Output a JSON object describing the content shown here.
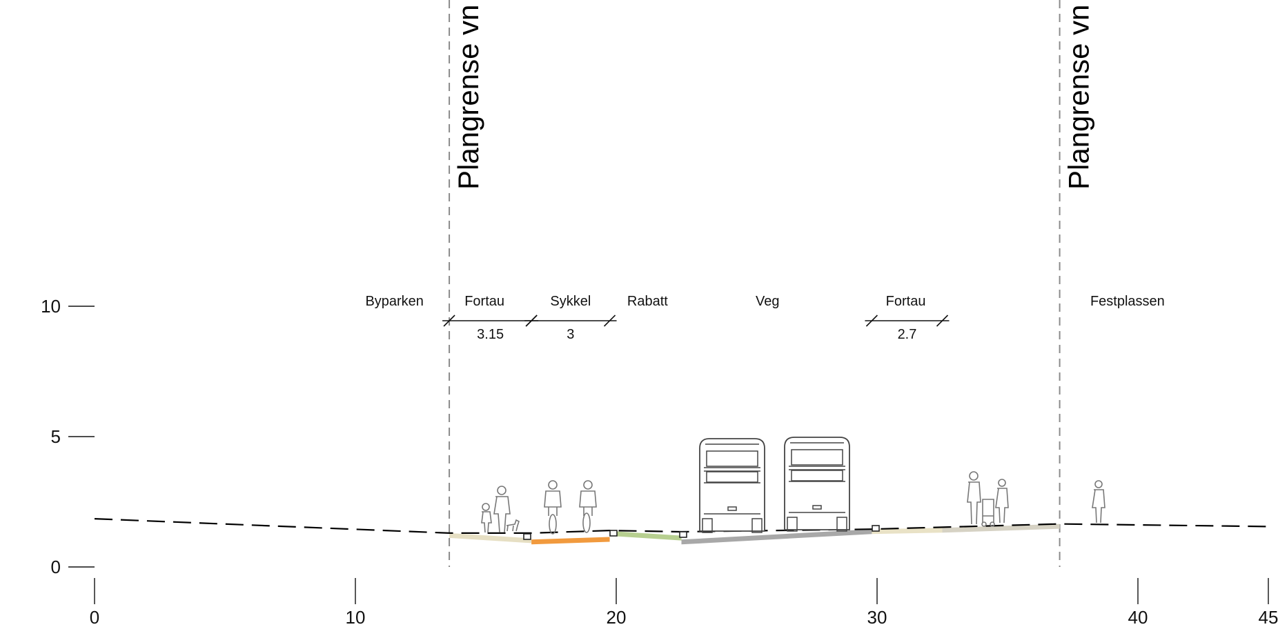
{
  "plan_boundaries": [
    {
      "x": 13.6,
      "label": "Plangrense vn"
    },
    {
      "x": 37.0,
      "label": "Plangrense vn"
    }
  ],
  "zones": [
    {
      "label": "Byparken",
      "x": 11.5
    },
    {
      "label": "Fortau",
      "x": 14.95
    },
    {
      "label": "Sykkel",
      "x": 18.25
    },
    {
      "label": "Rabatt",
      "x": 21.2
    },
    {
      "label": "Veg",
      "x": 25.8
    },
    {
      "label": "Fortau",
      "x": 31.1
    },
    {
      "label": "Festplassen",
      "x": 39.6
    }
  ],
  "dimensions": [
    {
      "from": 13.6,
      "to": 16.75,
      "label": "3.15"
    },
    {
      "from": 16.75,
      "to": 19.75,
      "label": "3"
    },
    {
      "from": 29.8,
      "to": 32.5,
      "label": "2.7"
    }
  ],
  "y_axis": [
    {
      "value": 0,
      "label": "0"
    },
    {
      "value": 5,
      "label": "5"
    },
    {
      "value": 10,
      "label": "10"
    }
  ],
  "x_axis": [
    {
      "value": 0,
      "label": "0"
    },
    {
      "value": 10,
      "label": "10"
    },
    {
      "value": 20,
      "label": "20"
    },
    {
      "value": 30,
      "label": "30"
    },
    {
      "value": 40,
      "label": "40"
    },
    {
      "value": 45,
      "label": "45"
    }
  ],
  "surfaces": [
    {
      "name": "fortau-left-surface",
      "from": 13.6,
      "to": 16.75,
      "elev_from": 1.3,
      "elev_to": 1.1,
      "color": "#e6dfc3"
    },
    {
      "name": "sykkel-surface",
      "from": 16.75,
      "to": 19.75,
      "elev_from": 1.05,
      "elev_to": 1.15,
      "color": "#f19a3e"
    },
    {
      "name": "rabatt-surface",
      "from": 19.75,
      "to": 22.5,
      "elev_from": 1.38,
      "elev_to": 1.2,
      "color": "#b7cf90"
    },
    {
      "name": "veg-surface",
      "from": 22.5,
      "to": 29.8,
      "elev_from": 1.05,
      "elev_to": 1.45,
      "color": "#a8a8a8"
    },
    {
      "name": "fortau-right-surface-a",
      "from": 29.8,
      "to": 32.5,
      "elev_from": 1.45,
      "elev_to": 1.5,
      "color": "#e9e2c6"
    },
    {
      "name": "fortau-right-surface-b",
      "from": 32.5,
      "to": 37.0,
      "elev_from": 1.5,
      "elev_to": 1.65,
      "color": "#d6d2c4"
    }
  ],
  "terrain": [
    {
      "x": 0,
      "y": 1.85
    },
    {
      "x": 13.6,
      "y": 1.3
    },
    {
      "x": 16.75,
      "y": 1.3
    },
    {
      "x": 19.75,
      "y": 1.4
    },
    {
      "x": 22.5,
      "y": 1.35
    },
    {
      "x": 29.8,
      "y": 1.45
    },
    {
      "x": 37.0,
      "y": 1.65
    },
    {
      "x": 45,
      "y": 1.55
    }
  ],
  "colors": {
    "line": "#000000",
    "boundary": "#8a8a8a",
    "sketch": "#777777"
  }
}
